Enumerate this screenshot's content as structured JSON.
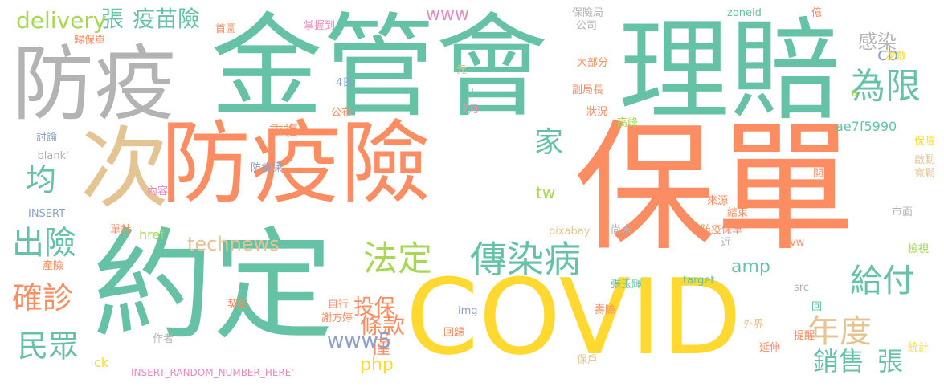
{
  "words": [
    {
      "text": "保單",
      "color": "#fc8d62"
    },
    {
      "text": "防疫險",
      "color": "#fc8d62"
    },
    {
      "text": "金管會",
      "color": "#66c2a5"
    },
    {
      "text": "理賠",
      "color": "#66c2a5"
    },
    {
      "text": "約定",
      "color": "#66c2a5"
    },
    {
      "text": "COVID",
      "color": "#ffd92f"
    },
    {
      "text": "防疫",
      "color": "#b3b3b3"
    },
    {
      "text": "次",
      "color": "#e5c494"
    },
    {
      "text": "傳染病",
      "color": "#66c2a5"
    },
    {
      "text": "法定",
      "color": "#a6d854"
    },
    {
      "text": "為限",
      "color": "#66c2a5"
    },
    {
      "text": "給付",
      "color": "#66c2a5"
    },
    {
      "text": "年度",
      "color": "#e5c494"
    },
    {
      "text": "出險",
      "color": "#66c2a5"
    },
    {
      "text": "確診",
      "color": "#fc8d62"
    },
    {
      "text": "民眾",
      "color": "#66c2a5"
    },
    {
      "text": "均",
      "color": "#66c2a5"
    },
    {
      "text": "家",
      "color": "#66c2a5"
    },
    {
      "text": "銷售",
      "color": "#66c2a5"
    },
    {
      "text": "張",
      "color": "#66c2a5"
    },
    {
      "text": "張",
      "color": "#66c2a5"
    },
    {
      "text": "疫苗險",
      "color": "#66c2a5"
    },
    {
      "text": "delivery",
      "color": "#a6d854"
    },
    {
      "text": "感染",
      "color": "#b3b3b3"
    },
    {
      "text": "cb",
      "color": "#8da0cb"
    },
    {
      "text": "條款",
      "color": "#fc8d62"
    },
    {
      "text": "僅",
      "color": "#fc8d62"
    },
    {
      "text": "投保",
      "color": "#fc8d62"
    },
    {
      "text": "www5",
      "color": "#8da0cb"
    },
    {
      "text": "technews",
      "color": "#e5c494"
    },
    {
      "text": "php",
      "color": "#ffd92f"
    },
    {
      "text": "amp",
      "color": "#66c2a5"
    },
    {
      "text": "www",
      "color": "#e78ac3"
    },
    {
      "text": "ae7f5990",
      "color": "#66c2a5"
    },
    {
      "text": "tw",
      "color": "#a6d854"
    },
    {
      "text": "href",
      "color": "#a6d854"
    },
    {
      "text": "重複",
      "color": "#fc8d62"
    },
    {
      "text": "ck",
      "color": "#ffd92f"
    },
    {
      "text": "INSERT_RANDOM_NUMBER_HERE'",
      "color": "#e78ac3"
    },
    {
      "text": "保險局",
      "color": "#b3b3b3"
    },
    {
      "text": "公司",
      "color": "#b3b3b3"
    },
    {
      "text": "大部分",
      "color": "#fc8d62"
    },
    {
      "text": "副局長",
      "color": "#fc8d62"
    },
    {
      "text": "狀況",
      "color": "#fc8d62"
    },
    {
      "text": "高峰",
      "color": "#a6d854"
    },
    {
      "text": "zoneid",
      "color": "#66c2a5"
    },
    {
      "text": "億",
      "color": "#fc8d62"
    },
    {
      "text": "次數",
      "color": "#ffd92f"
    },
    {
      "text": "a",
      "color": "#a6d854"
    },
    {
      "text": "保險",
      "color": "#ffd92f"
    },
    {
      "text": "啟動",
      "color": "#e5c494"
    },
    {
      "text": "寬鬆",
      "color": "#e5c494"
    },
    {
      "text": "閱讀",
      "color": "#fc8d62"
    },
    {
      "text": "市面",
      "color": "#b3b3b3"
    },
    {
      "text": "檢視",
      "color": "#a6d854"
    },
    {
      "text": "來源",
      "color": "#fc8d62"
    },
    {
      "text": "結束",
      "color": "#fc8d62"
    },
    {
      "text": "尚未",
      "color": "#b3b3b3"
    },
    {
      "text": "防疫保單",
      "color": "#fc8d62"
    },
    {
      "text": "近",
      "color": "#b3b3b3"
    },
    {
      "text": "avw",
      "color": "#fc8d62"
    },
    {
      "text": "pixabay",
      "color": "#e5c494"
    },
    {
      "text": "target",
      "color": "#66c2a5"
    },
    {
      "text": "張玉輝",
      "color": "#66c2a5"
    },
    {
      "text": "src",
      "color": "#b3b3b3"
    },
    {
      "text": "回",
      "color": "#66c2a5"
    },
    {
      "text": "壽險",
      "color": "#fc8d62"
    },
    {
      "text": "外界",
      "color": "#e5c494"
    },
    {
      "text": "提醒",
      "color": "#fc8d62"
    },
    {
      "text": "延伸",
      "color": "#fc8d62"
    },
    {
      "text": "統計",
      "color": "#ffd92f"
    },
    {
      "text": "保戶",
      "color": "#e5c494"
    },
    {
      "text": "謝方婷",
      "color": "#fc8d62"
    },
    {
      "text": "回歸",
      "color": "#fc8d62"
    },
    {
      "text": "img",
      "color": "#8da0cb"
    },
    {
      "text": "自行",
      "color": "#fc8d62"
    },
    {
      "text": "n",
      "color": "#66c2a5"
    },
    {
      "text": "契約",
      "color": "#fc8d62"
    },
    {
      "text": "作者",
      "color": "#b3b3b3"
    },
    {
      "text": "首圖",
      "color": "#fc8d62"
    },
    {
      "text": "掌握到",
      "color": "#e78ac3"
    },
    {
      "text": "歸保單",
      "color": "#fc8d62"
    },
    {
      "text": "元",
      "color": "#e5c494"
    },
    {
      "text": "日",
      "color": "#66c2a5"
    },
    {
      "text": "4日",
      "color": "#8da0cb"
    },
    {
      "text": "7月",
      "color": "#e78ac3"
    },
    {
      "text": "公布",
      "color": "#fc8d62"
    },
    {
      "text": "討論",
      "color": "#8da0cb"
    },
    {
      "text": "_blank'",
      "color": "#b3b3b3"
    },
    {
      "text": "防疫保",
      "color": "#8da0cb"
    },
    {
      "text": "內容",
      "color": "#e78ac3"
    },
    {
      "text": "INSERT",
      "color": "#8da0cb"
    },
    {
      "text": "單針",
      "color": "#fc8d62"
    },
    {
      "text": "產險",
      "color": "#fc8d62"
    }
  ]
}
